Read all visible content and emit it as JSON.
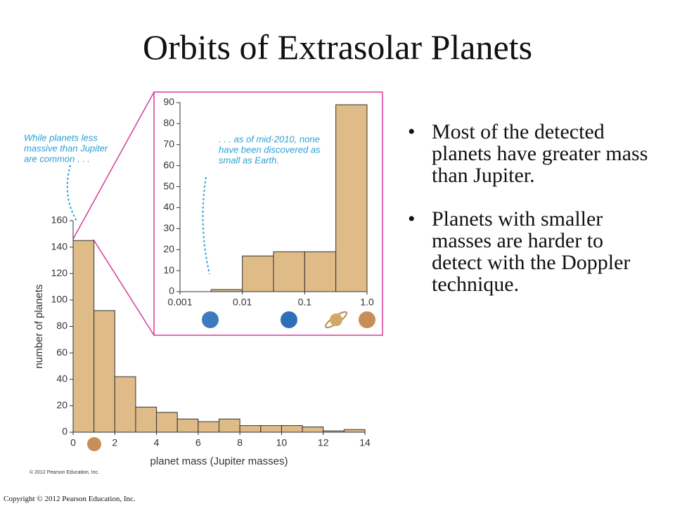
{
  "title": "Orbits of Extrasolar Planets",
  "bullets": [
    "Most of the detected planets have greater mass than Jupiter.",
    "Planets with smaller masses are harder to detect with the Doppler technique."
  ],
  "credit": "© 2012 Pearson Education, Inc.",
  "footer": "Copyright © 2012 Pearson Education, Inc.",
  "chart_data": [
    {
      "type": "histogram",
      "xlabel": "planet mass (Jupiter masses)",
      "ylabel": "number of planets",
      "annotation": [
        "While planets less",
        "massive than Jupiter",
        "are common . . ."
      ],
      "bins": [
        0,
        1,
        2,
        3,
        4,
        5,
        6,
        7,
        8,
        9,
        10,
        11,
        12,
        13,
        14
      ],
      "values": [
        145,
        92,
        42,
        19,
        15,
        10,
        8,
        10,
        5,
        5,
        5,
        4,
        1,
        2
      ],
      "color": "#dfbb88",
      "xlim": [
        0,
        14
      ],
      "xticks": [
        0,
        2,
        4,
        6,
        8,
        10,
        12,
        14
      ],
      "ylim": [
        0,
        160
      ],
      "yticks": [
        0,
        20,
        40,
        60,
        80,
        100,
        120,
        140,
        160
      ]
    },
    {
      "type": "histogram",
      "log_x": true,
      "annotation": [
        ". . . as of mid-2010, none",
        "have been  discovered as",
        "small as Earth."
      ],
      "bins": [
        0.00316,
        0.01,
        0.0316,
        0.1,
        0.316,
        1
      ],
      "values": [
        1,
        17,
        19,
        19,
        89
      ],
      "color": "#dfbb88",
      "xlim": [
        0.001,
        1
      ],
      "xticks": [
        0.001,
        0.01,
        0.1,
        {
          "value": 1,
          "label": "1.0"
        }
      ],
      "ylim": [
        0,
        90
      ],
      "yticks": [
        0,
        10,
        20,
        30,
        40,
        50,
        60,
        70,
        80,
        90
      ]
    }
  ]
}
